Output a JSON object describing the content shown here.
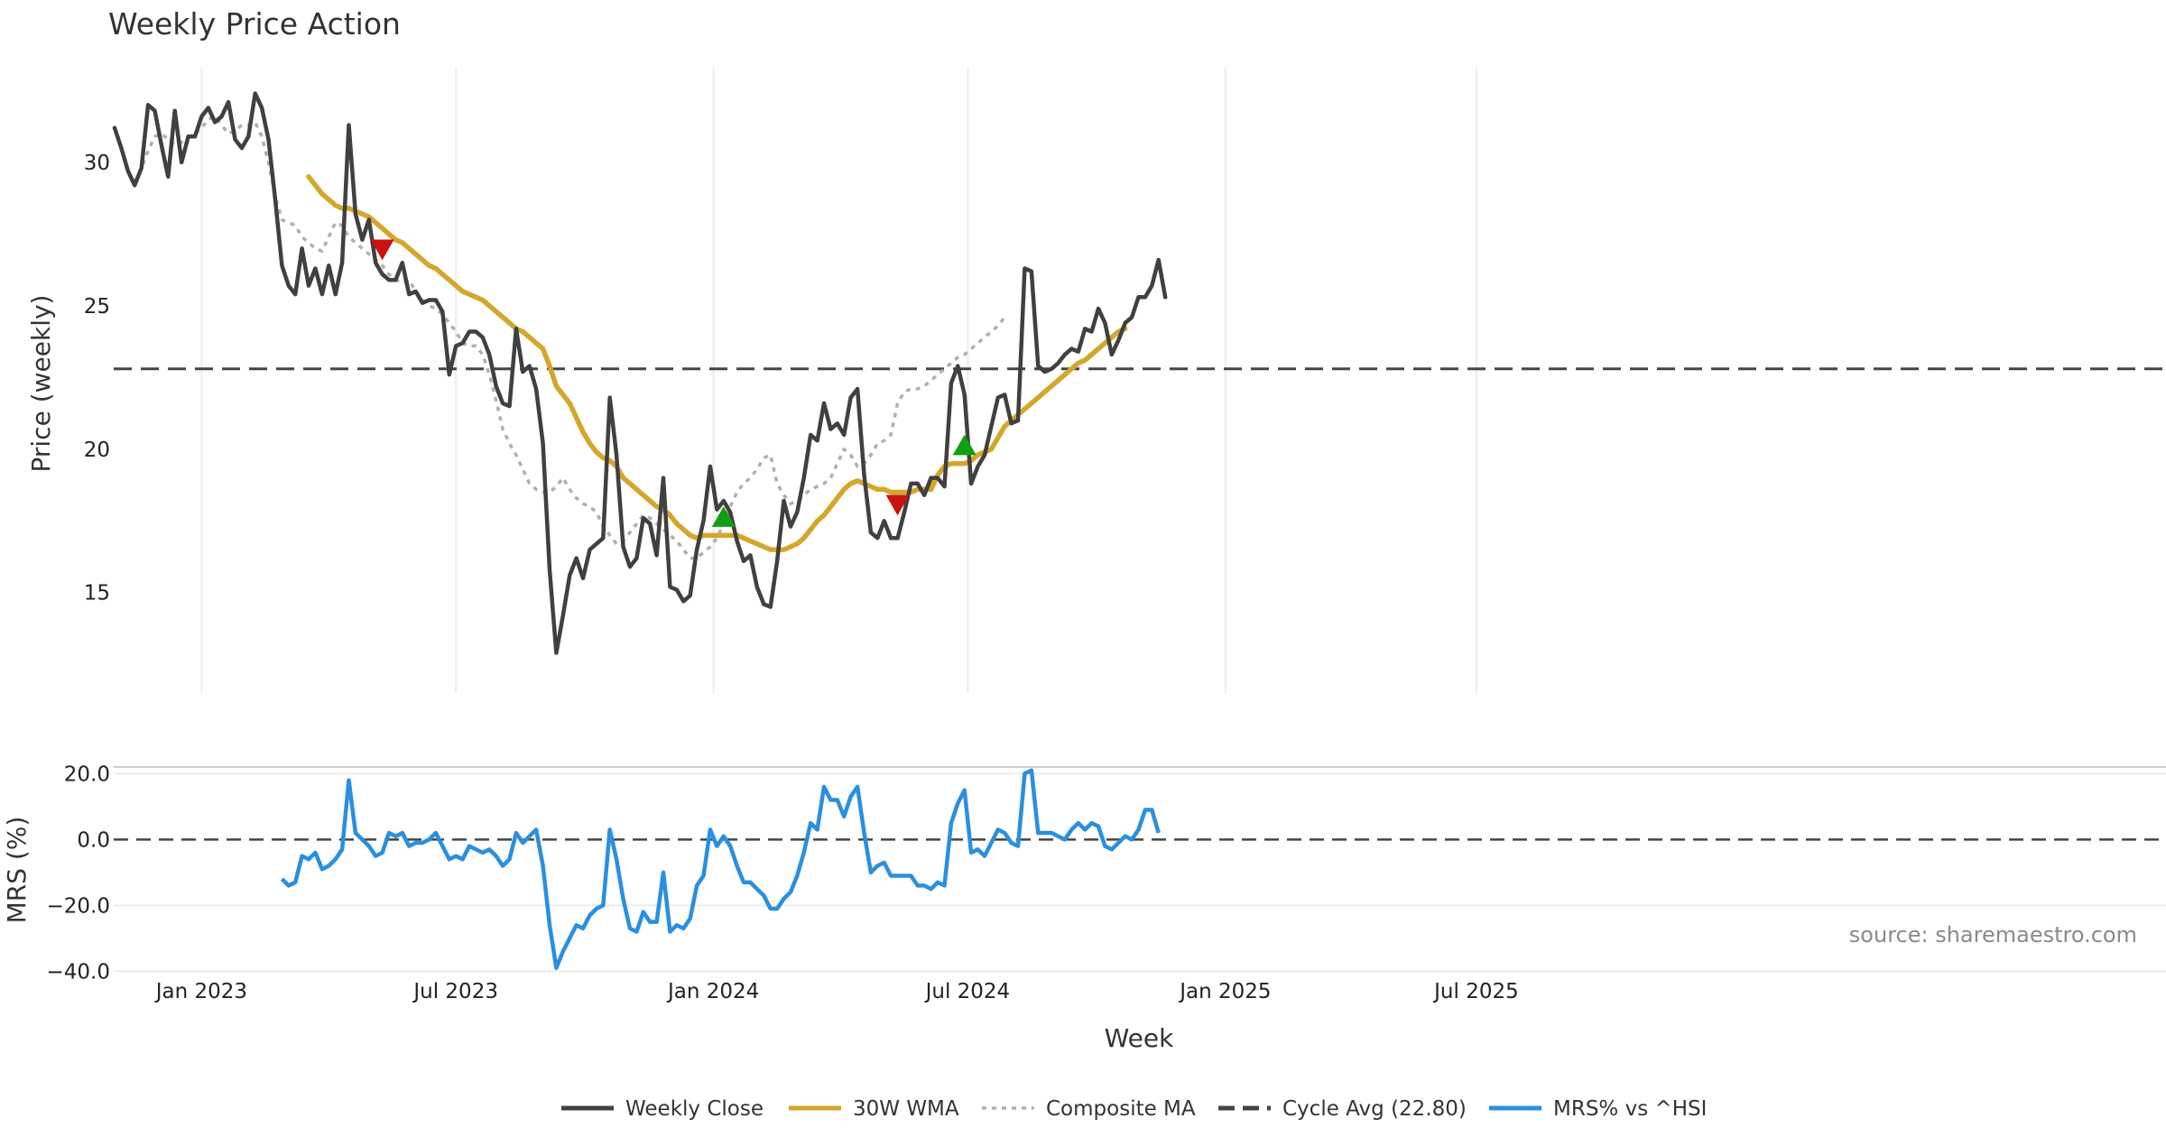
{
  "chart_data": {
    "type": "line",
    "title": "Weekly Price Action",
    "xlabel": "Week",
    "x_ticks": [
      "Jan 2023",
      "Jul 2023",
      "Jan 2024",
      "Jul 2024",
      "Jan 2025",
      "Jul 2025"
    ],
    "source": "source: sharemaestro.com",
    "price_panel": {
      "ylabel": "Price (weekly)",
      "ylim": [
        11.5,
        33.3
      ],
      "y_ticks": [
        15,
        20,
        25,
        30
      ],
      "grid": true,
      "series": [
        {
          "name": "Weekly Close",
          "color": "#404040",
          "style": "solid",
          "start_week": 0,
          "values": [
            31.2,
            30.5,
            29.7,
            29.2,
            29.8,
            32.0,
            31.8,
            30.6,
            29.5,
            31.8,
            30.0,
            30.9,
            30.9,
            31.6,
            31.9,
            31.4,
            31.6,
            32.1,
            30.8,
            30.5,
            30.9,
            32.4,
            31.9,
            30.8,
            28.7,
            26.4,
            25.7,
            25.4,
            27.0,
            25.7,
            26.3,
            25.4,
            26.4,
            25.4,
            26.5,
            31.3,
            28.2,
            27.3,
            28.0,
            26.5,
            26.1,
            25.9,
            25.9,
            26.5,
            25.4,
            25.5,
            25.1,
            25.2,
            25.2,
            24.8,
            22.6,
            23.6,
            23.7,
            24.1,
            24.1,
            23.9,
            23.3,
            22.2,
            21.6,
            21.5,
            24.2,
            22.7,
            22.9,
            22.1,
            20.2,
            15.8,
            12.9,
            14.2,
            15.6,
            16.2,
            15.5,
            16.5,
            16.7,
            16.9,
            21.8,
            19.8,
            16.6,
            15.9,
            16.2,
            17.6,
            17.4,
            16.3,
            19.0,
            15.2,
            15.1,
            14.7,
            14.9,
            16.5,
            17.5,
            19.4,
            17.9,
            18.2,
            17.8,
            16.8,
            16.1,
            16.3,
            15.2,
            14.6,
            14.5,
            16.1,
            18.2,
            17.3,
            17.8,
            19.0,
            20.5,
            20.3,
            21.6,
            20.7,
            20.9,
            20.5,
            21.8,
            22.1,
            19.1,
            17.1,
            16.9,
            17.5,
            16.9,
            16.9,
            17.8,
            18.8,
            18.8,
            18.4,
            19.0,
            19.0,
            18.7,
            22.3,
            22.9,
            21.9,
            18.8,
            19.4,
            19.8,
            20.8,
            21.8,
            21.9,
            20.9,
            21.0,
            26.3,
            26.2,
            22.9,
            22.7,
            22.8,
            23.0,
            23.3,
            23.5,
            23.4,
            24.2,
            24.1,
            24.9,
            24.4,
            23.3,
            23.8,
            24.4,
            24.6,
            25.3,
            25.3,
            25.7,
            26.6,
            25.3
          ]
        },
        {
          "name": "30W WMA",
          "color": "#d4a72c",
          "style": "solid",
          "start_week": 29,
          "values": [
            29.5,
            29.2,
            28.9,
            28.7,
            28.5,
            28.4,
            28.4,
            28.3,
            28.2,
            28.1,
            27.9,
            27.7,
            27.5,
            27.3,
            27.2,
            27.0,
            26.8,
            26.6,
            26.4,
            26.3,
            26.1,
            25.9,
            25.7,
            25.5,
            25.4,
            25.3,
            25.2,
            25.0,
            24.8,
            24.6,
            24.4,
            24.2,
            24.1,
            23.9,
            23.7,
            23.5,
            22.9,
            22.2,
            21.9,
            21.6,
            21.1,
            20.6,
            20.2,
            19.9,
            19.7,
            19.6,
            19.4,
            19.0,
            18.8,
            18.6,
            18.4,
            18.2,
            18.0,
            17.9,
            17.7,
            17.4,
            17.2,
            17.0,
            16.9,
            17.0,
            17.0,
            17.0,
            17.0,
            17.0,
            17.0,
            16.9,
            16.8,
            16.7,
            16.6,
            16.5,
            16.5,
            16.5,
            16.6,
            16.7,
            16.9,
            17.2,
            17.5,
            17.7,
            18.0,
            18.3,
            18.6,
            18.8,
            18.9,
            18.8,
            18.7,
            18.6,
            18.6,
            18.5,
            18.5,
            18.5,
            18.5,
            18.6,
            18.6,
            18.6,
            19.1,
            19.4,
            19.5,
            19.5,
            19.5,
            19.6,
            19.8,
            19.9,
            20.0,
            20.4,
            20.8,
            21.0,
            21.2,
            21.4,
            21.6,
            21.8,
            22.0,
            22.2,
            22.4,
            22.6,
            22.8,
            23.0,
            23.1,
            23.3,
            23.5,
            23.7,
            23.9,
            24.1,
            24.2
          ]
        },
        {
          "name": "Composite MA",
          "color": "#b0b0b0",
          "style": "dotted",
          "start_week": 3,
          "values": [
            29.3,
            29.8,
            30.4,
            30.9,
            31.0,
            30.8,
            30.6,
            30.7,
            30.9,
            31.0,
            31.2,
            31.5,
            31.6,
            31.3,
            31.0,
            31.1,
            31.3,
            31.3,
            31.4,
            30.9,
            30.0,
            28.8,
            28.0,
            27.9,
            27.8,
            27.4,
            27.2,
            27.0,
            26.9,
            27.4,
            27.9,
            27.8,
            27.4,
            27.2,
            27.0,
            26.8,
            26.6,
            26.4,
            26.1,
            25.9,
            25.8,
            25.9,
            25.5,
            25.2,
            25.0,
            24.9,
            24.7,
            24.4,
            24.1,
            23.7,
            23.6,
            23.6,
            23.3,
            22.6,
            21.7,
            20.7,
            20.2,
            19.8,
            19.3,
            18.8,
            18.6,
            18.5,
            18.5,
            18.7,
            19.0,
            18.6,
            18.3,
            18.1,
            18.0,
            17.8,
            17.3,
            17.0,
            16.7,
            16.8,
            17.1,
            17.4,
            17.7,
            17.6,
            17.4,
            17.2,
            17.0,
            16.8,
            16.5,
            16.2,
            16.2,
            16.4,
            16.6,
            16.9,
            17.4,
            18.0,
            18.5,
            18.8,
            19.0,
            19.3,
            19.7,
            19.8,
            18.8,
            18.4,
            18.1,
            18.2,
            18.4,
            18.6,
            18.7,
            18.8,
            19.0,
            19.5,
            20.0,
            19.8,
            19.4,
            19.5,
            19.8,
            20.2,
            20.3,
            20.5,
            21.6,
            22.0,
            22.1,
            22.1,
            22.2,
            22.4,
            22.6,
            22.8,
            23.0,
            23.2,
            23.3,
            23.5,
            23.7,
            23.9,
            24.1,
            24.3,
            24.6
          ]
        }
      ],
      "reference_line": {
        "name": "Cycle Avg (22.80)",
        "value": 22.8,
        "color": "#444444",
        "style": "dashed"
      },
      "signals": [
        {
          "type": "sell",
          "week": 40,
          "value": 27.0,
          "color": "#cc1111"
        },
        {
          "type": "buy",
          "week": 91,
          "value": 17.6,
          "color": "#11a011"
        },
        {
          "type": "sell",
          "week": 117,
          "value": 18.1,
          "color": "#cc1111"
        },
        {
          "type": "buy",
          "week": 127,
          "value": 20.1,
          "color": "#11a011"
        }
      ]
    },
    "mrs_panel": {
      "ylabel": "MRS (%)",
      "ylim": [
        -41,
        22
      ],
      "y_ticks": [
        "20.0",
        "0.0",
        "−20.0",
        "−40.0"
      ],
      "y_tick_values": [
        20,
        0,
        -20,
        -40
      ],
      "reference_value": 0,
      "series": [
        {
          "name": "MRS% vs ^HSI",
          "color": "#2a8fe0",
          "style": "solid",
          "start_week": 25,
          "values": [
            -12,
            -14,
            -13,
            -5,
            -6,
            -4,
            -9,
            -8,
            -6,
            -3,
            18,
            2,
            0,
            -2,
            -5,
            -4,
            2,
            1,
            2,
            -2,
            -1,
            -1,
            0,
            2,
            -2,
            -6,
            -5,
            -6,
            -2,
            -3,
            -4,
            -3,
            -5,
            -8,
            -6,
            2,
            -1,
            1,
            3,
            -8,
            -26,
            -39,
            -34,
            -30,
            -26,
            -27,
            -23,
            -21,
            -20,
            3,
            -6,
            -18,
            -27,
            -28,
            -22,
            -25,
            -25,
            -10,
            -28,
            -26,
            -27,
            -24,
            -14,
            -11,
            3,
            -2,
            1,
            -2,
            -8,
            -13,
            -13,
            -15,
            -17,
            -21,
            -21,
            -18,
            -16,
            -11,
            -4,
            5,
            3,
            16,
            12,
            12,
            7,
            13,
            16,
            2,
            -10,
            -8,
            -7,
            -11,
            -11,
            -11,
            -11,
            -14,
            -14,
            -15,
            -13,
            -14,
            5,
            11,
            15,
            -4,
            -3,
            -5,
            -1,
            3,
            2,
            -1,
            -2,
            20,
            21,
            2,
            2,
            2,
            1,
            0,
            3,
            5,
            3,
            5,
            4,
            -2,
            -3,
            -1,
            1,
            0,
            3,
            9,
            9,
            2
          ]
        }
      ]
    },
    "legend": [
      {
        "label": "Weekly Close",
        "color": "#404040",
        "style": "solid"
      },
      {
        "label": "30W WMA",
        "color": "#d4a72c",
        "style": "solid"
      },
      {
        "label": "Composite MA",
        "color": "#b0b0b0",
        "style": "dotted"
      },
      {
        "label": "Cycle Avg (22.80)",
        "color": "#444444",
        "style": "dashed"
      },
      {
        "label": "MRS% vs ^HSI",
        "color": "#2a8fe0",
        "style": "solid"
      }
    ]
  }
}
